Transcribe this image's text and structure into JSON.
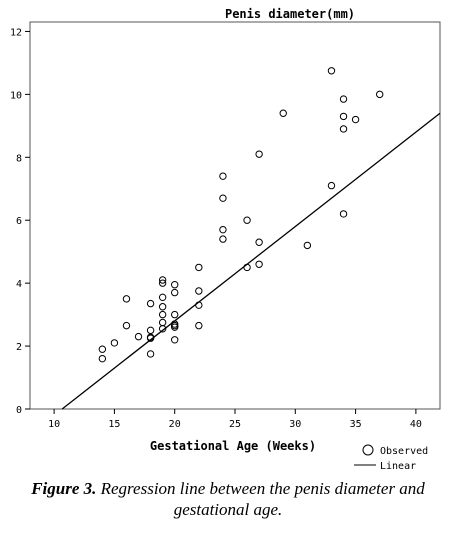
{
  "chart_data": {
    "type": "scatter",
    "title": "Penis diameter(mm)",
    "xlabel": "Gestational Age (Weeks)",
    "ylabel": "",
    "xlim": [
      8,
      42
    ],
    "ylim": [
      0,
      12.3
    ],
    "xticks": [
      "10",
      "15",
      "20",
      "25",
      "30",
      "35",
      "40"
    ],
    "yticks": [
      "0",
      "2",
      "4",
      "6",
      "8",
      "10",
      "12"
    ],
    "grid": false,
    "legend_position": "bottom-right",
    "series": [
      {
        "name": "Observed",
        "marker": "open-circle",
        "points": [
          [
            14,
            1.9
          ],
          [
            14,
            1.6
          ],
          [
            15,
            2.1
          ],
          [
            16,
            3.5
          ],
          [
            16,
            2.65
          ],
          [
            17,
            2.3
          ],
          [
            18,
            3.35
          ],
          [
            18,
            2.5
          ],
          [
            18,
            2.25
          ],
          [
            18,
            1.75
          ],
          [
            18,
            2.28
          ],
          [
            19,
            4.1
          ],
          [
            19,
            4.0
          ],
          [
            19,
            3.55
          ],
          [
            19,
            3.25
          ],
          [
            19,
            3.0
          ],
          [
            19,
            2.75
          ],
          [
            19,
            2.55
          ],
          [
            20,
            3.95
          ],
          [
            20,
            3.7
          ],
          [
            20,
            3.0
          ],
          [
            20,
            2.7
          ],
          [
            20,
            2.6
          ],
          [
            20,
            2.65
          ],
          [
            20,
            2.2
          ],
          [
            22,
            4.5
          ],
          [
            22,
            3.75
          ],
          [
            22,
            3.3
          ],
          [
            22,
            2.65
          ],
          [
            24,
            7.4
          ],
          [
            24,
            6.7
          ],
          [
            24,
            5.7
          ],
          [
            24,
            5.4
          ],
          [
            26,
            6.0
          ],
          [
            26,
            4.5
          ],
          [
            27,
            8.1
          ],
          [
            27,
            5.3
          ],
          [
            27,
            4.6
          ],
          [
            29,
            9.4
          ],
          [
            31,
            5.2
          ],
          [
            33,
            10.75
          ],
          [
            33,
            7.1
          ],
          [
            34,
            9.85
          ],
          [
            34,
            9.3
          ],
          [
            34,
            8.9
          ],
          [
            34,
            6.2
          ],
          [
            35,
            9.2
          ],
          [
            37,
            10.0
          ]
        ]
      },
      {
        "name": "Linear",
        "marker": "line",
        "intercept": -3.2,
        "slope": 0.3
      }
    ]
  },
  "figure": {
    "caption_label": "Figure 3.",
    "caption_text_1": " Regression line between the penis diameter and",
    "caption_text_2": "gestational age."
  },
  "colors": {
    "ink": "#000000",
    "background": "#ffffff"
  }
}
